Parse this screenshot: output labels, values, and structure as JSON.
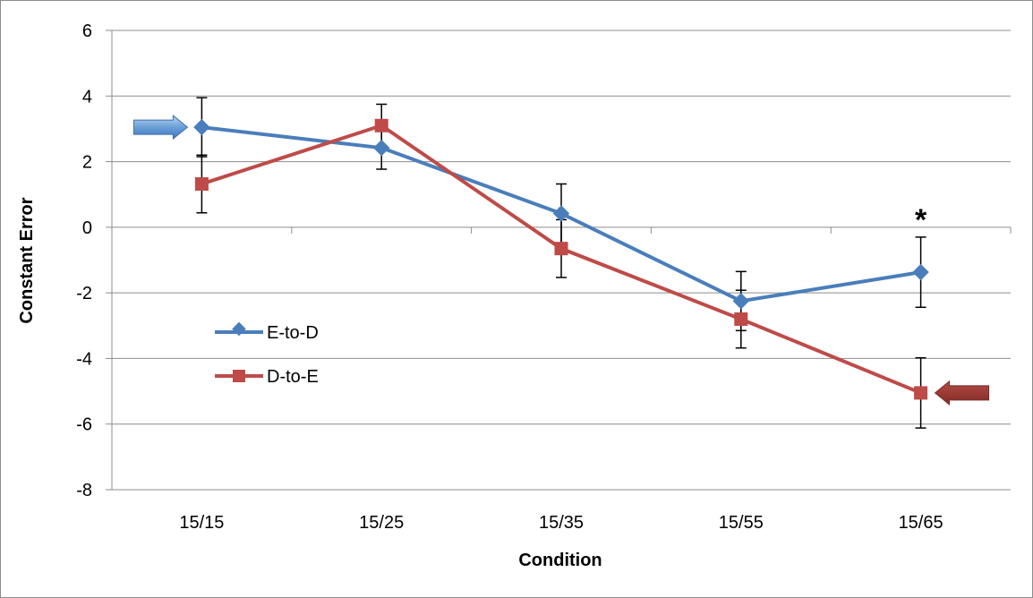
{
  "chart_data": {
    "type": "line",
    "title": "",
    "xlabel": "Condition",
    "ylabel": "Constant Error",
    "categories": [
      "15/15",
      "15/25",
      "15/35",
      "15/55",
      "15/65"
    ],
    "ylim": [
      -8,
      6
    ],
    "yticks": [
      -8,
      -6,
      -4,
      -2,
      0,
      2,
      4,
      6
    ],
    "grid": "horizontal",
    "legend_position": "left",
    "series": [
      {
        "name": "E-to-D",
        "color": "#4a7ebb",
        "marker": "diamond",
        "values": [
          3.05,
          2.42,
          0.42,
          -2.25,
          -1.37
        ],
        "error": [
          0.9,
          0.65,
          0.9,
          0.9,
          1.07
        ]
      },
      {
        "name": "D-to-E",
        "color": "#be4b48",
        "marker": "square",
        "values": [
          1.32,
          3.1,
          -0.65,
          -2.8,
          -5.05
        ],
        "error": [
          0.88,
          0.65,
          0.88,
          0.88,
          1.07
        ]
      }
    ],
    "annotations": [
      {
        "text": "*",
        "category": "15/65"
      }
    ],
    "arrows": [
      {
        "series": "E-to-D",
        "category": "15/15",
        "side": "left",
        "color": "#5b9bd5"
      },
      {
        "series": "D-to-E",
        "category": "15/65",
        "side": "right",
        "color": "#9c3b36"
      }
    ]
  }
}
